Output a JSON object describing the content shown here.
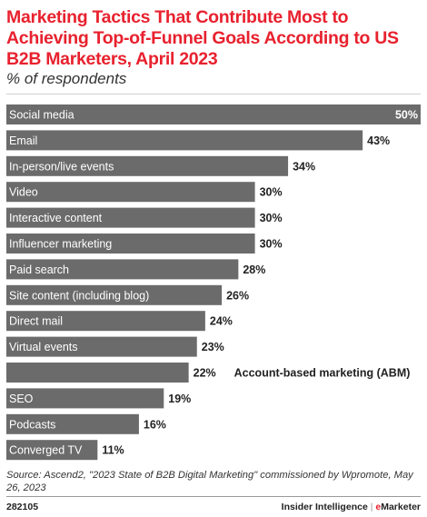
{
  "title": "Marketing Tactics That Contribute Most to Achieving Top-of-Funnel Goals According to US B2B Marketers, April 2023",
  "subtitle": "% of respondents",
  "source": "Source: Ascend2, \"2023 State of B2B Digital Marketing\" commissioned by Wpromote, May 26, 2023",
  "chart_id": "282105",
  "brand": {
    "left": "Insider Intelligence",
    "separator": "|",
    "right_accent": "e",
    "right_rest": "Marketer"
  },
  "colors": {
    "bar": "#6b6b6b",
    "title": "#e8212e",
    "label_on_bar": "#ffffff",
    "label_off_bar": "#222222"
  },
  "chart_data": {
    "type": "bar",
    "orientation": "horizontal",
    "title": "Marketing Tactics That Contribute Most to Achieving Top-of-Funnel Goals According to US B2B Marketers, April 2023",
    "ylabel": "% of respondents",
    "unit": "%",
    "xlim": [
      0,
      50
    ],
    "grid": false,
    "categories": [
      "Social media",
      "Email",
      "In-person/live events",
      "Video",
      "Interactive content",
      "Influencer marketing",
      "Paid search",
      "Site content (including blog)",
      "Direct mail",
      "Virtual events",
      "Account-based marketing (ABM)",
      "SEO",
      "Podcasts",
      "Converged TV"
    ],
    "values": [
      50,
      43,
      34,
      30,
      30,
      30,
      28,
      26,
      24,
      23,
      22,
      19,
      16,
      11
    ],
    "value_labels": [
      "50%",
      "43%",
      "34%",
      "30%",
      "30%",
      "30%",
      "28%",
      "26%",
      "24%",
      "23%",
      "22%",
      "19%",
      "16%",
      "11%"
    ]
  }
}
